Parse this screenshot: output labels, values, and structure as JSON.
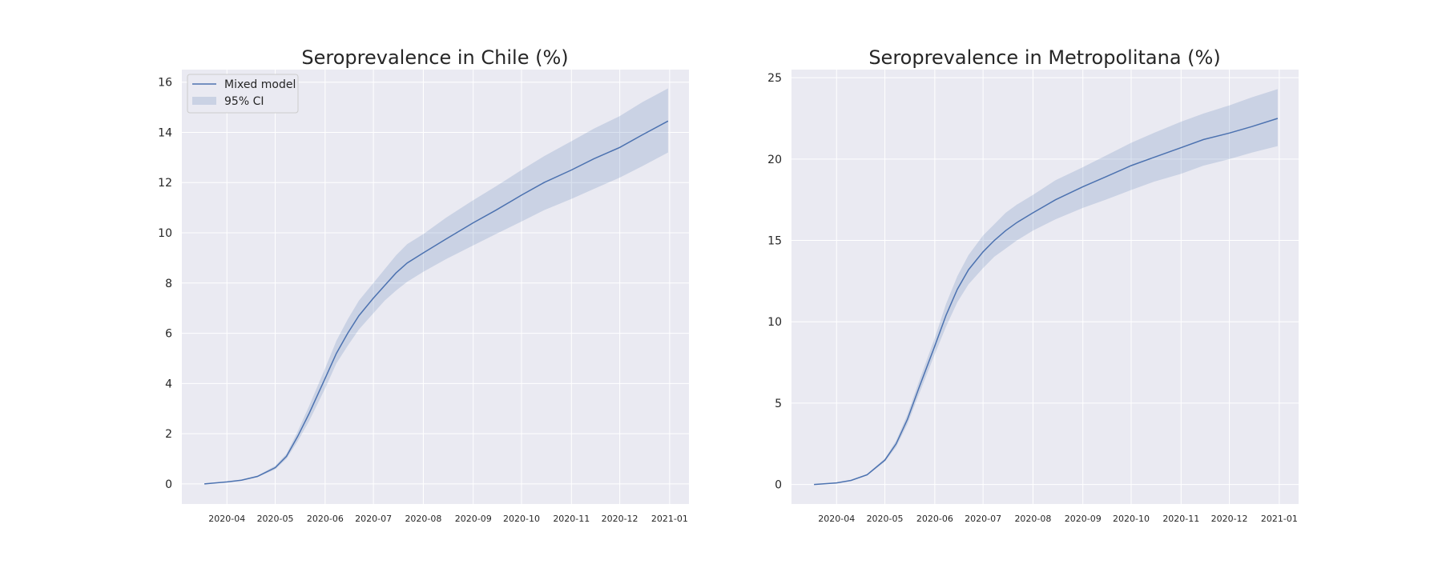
{
  "chart_data": [
    {
      "type": "line",
      "title": "Seroprevalence in Chile (%)",
      "xlabel": "",
      "ylabel": "",
      "x_axis": "date",
      "xlim": [
        "2020-03-04",
        "2021-01-13"
      ],
      "ylim": [
        -0.8,
        16.5
      ],
      "x_ticks": [
        "2020-04",
        "2020-05",
        "2020-06",
        "2020-07",
        "2020-08",
        "2020-09",
        "2020-10",
        "2020-11",
        "2020-12",
        "2021-01"
      ],
      "y_ticks": [
        0,
        2,
        4,
        6,
        8,
        10,
        12,
        14,
        16
      ],
      "grid": true,
      "legend": {
        "position": "upper left",
        "entries": [
          {
            "label": "Mixed model",
            "kind": "line"
          },
          {
            "label": "95% CI",
            "kind": "band"
          }
        ]
      },
      "series": [
        {
          "name": "Mixed model",
          "color": "#4c72b0",
          "band_color": "#4c72b0",
          "x": [
            "2020-03-18",
            "2020-04-01",
            "2020-04-10",
            "2020-04-20",
            "2020-05-01",
            "2020-05-08",
            "2020-05-15",
            "2020-05-22",
            "2020-06-01",
            "2020-06-08",
            "2020-06-15",
            "2020-06-22",
            "2020-07-01",
            "2020-07-08",
            "2020-07-15",
            "2020-07-22",
            "2020-08-01",
            "2020-08-15",
            "2020-09-01",
            "2020-09-15",
            "2020-10-01",
            "2020-10-15",
            "2020-11-01",
            "2020-11-15",
            "2020-12-01",
            "2020-12-15",
            "2020-12-31"
          ],
          "y": [
            0.0,
            0.08,
            0.15,
            0.3,
            0.65,
            1.1,
            1.9,
            2.8,
            4.2,
            5.2,
            6.0,
            6.7,
            7.4,
            7.9,
            8.4,
            8.8,
            9.2,
            9.75,
            10.4,
            10.9,
            11.5,
            12.0,
            12.5,
            12.95,
            13.4,
            13.9,
            14.45
          ],
          "lower": [
            0.0,
            0.07,
            0.13,
            0.27,
            0.58,
            1.0,
            1.7,
            2.5,
            3.8,
            4.8,
            5.5,
            6.15,
            6.8,
            7.3,
            7.7,
            8.05,
            8.45,
            8.95,
            9.5,
            9.95,
            10.45,
            10.9,
            11.35,
            11.75,
            12.2,
            12.65,
            13.2
          ],
          "upper": [
            0.0,
            0.09,
            0.17,
            0.33,
            0.72,
            1.2,
            2.1,
            3.1,
            4.6,
            5.7,
            6.55,
            7.3,
            8.0,
            8.55,
            9.1,
            9.55,
            9.95,
            10.6,
            11.3,
            11.85,
            12.5,
            13.05,
            13.65,
            14.15,
            14.65,
            15.2,
            15.75
          ]
        }
      ]
    },
    {
      "type": "line",
      "title": "Seroprevalence in Metropolitana (%)",
      "xlabel": "",
      "ylabel": "",
      "x_axis": "date",
      "xlim": [
        "2020-03-04",
        "2021-01-13"
      ],
      "ylim": [
        -1.2,
        25.5
      ],
      "x_ticks": [
        "2020-04",
        "2020-05",
        "2020-06",
        "2020-07",
        "2020-08",
        "2020-09",
        "2020-10",
        "2020-11",
        "2020-12",
        "2021-01"
      ],
      "y_ticks": [
        0,
        5,
        10,
        15,
        20,
        25
      ],
      "grid": true,
      "series": [
        {
          "color": "#4c72b0",
          "band_color": "#4c72b0",
          "x": [
            "2020-03-18",
            "2020-04-01",
            "2020-04-10",
            "2020-04-20",
            "2020-05-01",
            "2020-05-08",
            "2020-05-15",
            "2020-05-22",
            "2020-06-01",
            "2020-06-08",
            "2020-06-15",
            "2020-06-22",
            "2020-07-01",
            "2020-07-08",
            "2020-07-15",
            "2020-07-22",
            "2020-08-01",
            "2020-08-15",
            "2020-09-01",
            "2020-09-15",
            "2020-10-01",
            "2020-10-15",
            "2020-11-01",
            "2020-11-15",
            "2020-12-01",
            "2020-12-15",
            "2020-12-31"
          ],
          "y": [
            0.0,
            0.1,
            0.25,
            0.6,
            1.5,
            2.5,
            4.0,
            5.9,
            8.5,
            10.4,
            12.0,
            13.2,
            14.3,
            15.0,
            15.6,
            16.1,
            16.7,
            17.5,
            18.3,
            18.9,
            19.6,
            20.1,
            20.7,
            21.2,
            21.6,
            22.0,
            22.5
          ]
        }
      ],
      "band": {
        "lower": [
          0.0,
          0.09,
          0.22,
          0.55,
          1.4,
          2.3,
          3.7,
          5.5,
          8.0,
          9.7,
          11.2,
          12.3,
          13.3,
          14.0,
          14.5,
          15.0,
          15.6,
          16.3,
          17.0,
          17.5,
          18.1,
          18.6,
          19.1,
          19.6,
          20.0,
          20.4,
          20.8
        ],
        "upper": [
          0.0,
          0.11,
          0.28,
          0.65,
          1.6,
          2.7,
          4.3,
          6.3,
          9.0,
          11.1,
          12.8,
          14.1,
          15.3,
          16.0,
          16.7,
          17.2,
          17.8,
          18.7,
          19.5,
          20.2,
          21.0,
          21.6,
          22.3,
          22.8,
          23.3,
          23.8,
          24.3
        ]
      }
    }
  ]
}
